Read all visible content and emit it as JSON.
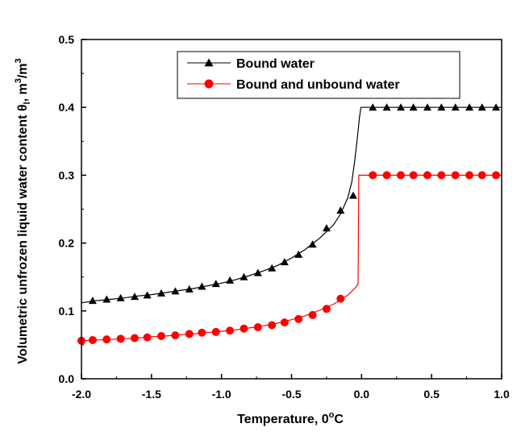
{
  "chart_data": {
    "type": "line",
    "xlabel": {
      "main": "Temperature, 0",
      "sup": "o",
      "unit": "C"
    },
    "ylabel": {
      "main": "Volumetric unfrozen liquid water content θ",
      "sub": "l",
      "sep": ", m",
      "sup1": "3",
      "slash": "/m",
      "sup2": "3"
    },
    "xlim": [
      -2.0,
      1.0
    ],
    "ylim": [
      0.0,
      0.5
    ],
    "x_ticks": [
      "-2.0",
      "-1.5",
      "-1.0",
      "-0.5",
      "0.0",
      "0.5",
      "1.0"
    ],
    "x_tick_values": [
      -2.0,
      -1.5,
      -1.0,
      -0.5,
      0.0,
      0.5,
      1.0
    ],
    "y_ticks": [
      "0.0",
      "0.1",
      "0.2",
      "0.3",
      "0.4",
      "0.5"
    ],
    "y_tick_values": [
      0.0,
      0.1,
      0.2,
      0.3,
      0.4,
      0.5
    ],
    "grid": false,
    "legend_placement": "top-center",
    "series": [
      {
        "name": "Bound water",
        "color": "#000000",
        "marker": "triangle",
        "line": [
          [
            -2.0,
            0.112
          ],
          [
            -1.9,
            0.115
          ],
          [
            -1.8,
            0.117
          ],
          [
            -1.7,
            0.119
          ],
          [
            -1.6,
            0.122
          ],
          [
            -1.5,
            0.124
          ],
          [
            -1.4,
            0.127
          ],
          [
            -1.3,
            0.13
          ],
          [
            -1.2,
            0.133
          ],
          [
            -1.1,
            0.137
          ],
          [
            -1.0,
            0.141
          ],
          [
            -0.9,
            0.146
          ],
          [
            -0.8,
            0.152
          ],
          [
            -0.7,
            0.159
          ],
          [
            -0.6,
            0.167
          ],
          [
            -0.5,
            0.178
          ],
          [
            -0.4,
            0.191
          ],
          [
            -0.3,
            0.207
          ],
          [
            -0.2,
            0.227
          ],
          [
            -0.15,
            0.243
          ],
          [
            -0.1,
            0.266
          ],
          [
            -0.07,
            0.29
          ],
          [
            -0.05,
            0.32
          ],
          [
            -0.03,
            0.355
          ],
          [
            -0.015,
            0.385
          ],
          [
            -0.005,
            0.4
          ],
          [
            0.0,
            0.4
          ],
          [
            1.0,
            0.4
          ]
        ],
        "points": [
          [
            -1.92,
            0.115
          ],
          [
            -1.82,
            0.117
          ],
          [
            -1.72,
            0.119
          ],
          [
            -1.62,
            0.121
          ],
          [
            -1.53,
            0.123
          ],
          [
            -1.43,
            0.126
          ],
          [
            -1.33,
            0.129
          ],
          [
            -1.23,
            0.132
          ],
          [
            -1.14,
            0.136
          ],
          [
            -1.04,
            0.14
          ],
          [
            -0.94,
            0.145
          ],
          [
            -0.84,
            0.15
          ],
          [
            -0.74,
            0.156
          ],
          [
            -0.64,
            0.163
          ],
          [
            -0.55,
            0.172
          ],
          [
            -0.45,
            0.183
          ],
          [
            -0.35,
            0.198
          ],
          [
            -0.25,
            0.222
          ],
          [
            -0.15,
            0.248
          ],
          [
            -0.06,
            0.27
          ],
          [
            0.08,
            0.4
          ],
          [
            0.18,
            0.4
          ],
          [
            0.28,
            0.4
          ],
          [
            0.37,
            0.4
          ],
          [
            0.47,
            0.4
          ],
          [
            0.57,
            0.4
          ],
          [
            0.67,
            0.4
          ],
          [
            0.77,
            0.4
          ],
          [
            0.86,
            0.4
          ],
          [
            0.96,
            0.4
          ]
        ]
      },
      {
        "name": "Bound and unbound water",
        "color": "#ff0000",
        "marker": "circle",
        "line": [
          [
            -2.0,
            0.056
          ],
          [
            -1.9,
            0.057
          ],
          [
            -1.8,
            0.058
          ],
          [
            -1.7,
            0.059
          ],
          [
            -1.6,
            0.06
          ],
          [
            -1.5,
            0.062
          ],
          [
            -1.4,
            0.063
          ],
          [
            -1.3,
            0.065
          ],
          [
            -1.2,
            0.066
          ],
          [
            -1.1,
            0.068
          ],
          [
            -1.0,
            0.07
          ],
          [
            -0.9,
            0.072
          ],
          [
            -0.8,
            0.075
          ],
          [
            -0.7,
            0.078
          ],
          [
            -0.6,
            0.082
          ],
          [
            -0.5,
            0.087
          ],
          [
            -0.4,
            0.093
          ],
          [
            -0.3,
            0.101
          ],
          [
            -0.2,
            0.11
          ],
          [
            -0.15,
            0.116
          ],
          [
            -0.1,
            0.123
          ],
          [
            -0.05,
            0.133
          ],
          [
            -0.03,
            0.138
          ],
          [
            -0.025,
            0.14
          ],
          [
            -0.02,
            0.3
          ],
          [
            0.0,
            0.3
          ],
          [
            1.0,
            0.3
          ]
        ],
        "points": [
          [
            -2.0,
            0.056
          ],
          [
            -1.92,
            0.057
          ],
          [
            -1.82,
            0.058
          ],
          [
            -1.72,
            0.059
          ],
          [
            -1.62,
            0.06
          ],
          [
            -1.53,
            0.061
          ],
          [
            -1.43,
            0.063
          ],
          [
            -1.33,
            0.064
          ],
          [
            -1.23,
            0.066
          ],
          [
            -1.14,
            0.068
          ],
          [
            -1.04,
            0.069
          ],
          [
            -0.94,
            0.071
          ],
          [
            -0.84,
            0.074
          ],
          [
            -0.74,
            0.076
          ],
          [
            -0.64,
            0.079
          ],
          [
            -0.55,
            0.083
          ],
          [
            -0.45,
            0.088
          ],
          [
            -0.35,
            0.094
          ],
          [
            -0.25,
            0.103
          ],
          [
            -0.15,
            0.118
          ],
          [
            0.08,
            0.3
          ],
          [
            0.18,
            0.3
          ],
          [
            0.28,
            0.3
          ],
          [
            0.37,
            0.3
          ],
          [
            0.47,
            0.3
          ],
          [
            0.57,
            0.3
          ],
          [
            0.67,
            0.3
          ],
          [
            0.77,
            0.3
          ],
          [
            0.86,
            0.3
          ],
          [
            0.96,
            0.3
          ]
        ]
      }
    ]
  }
}
